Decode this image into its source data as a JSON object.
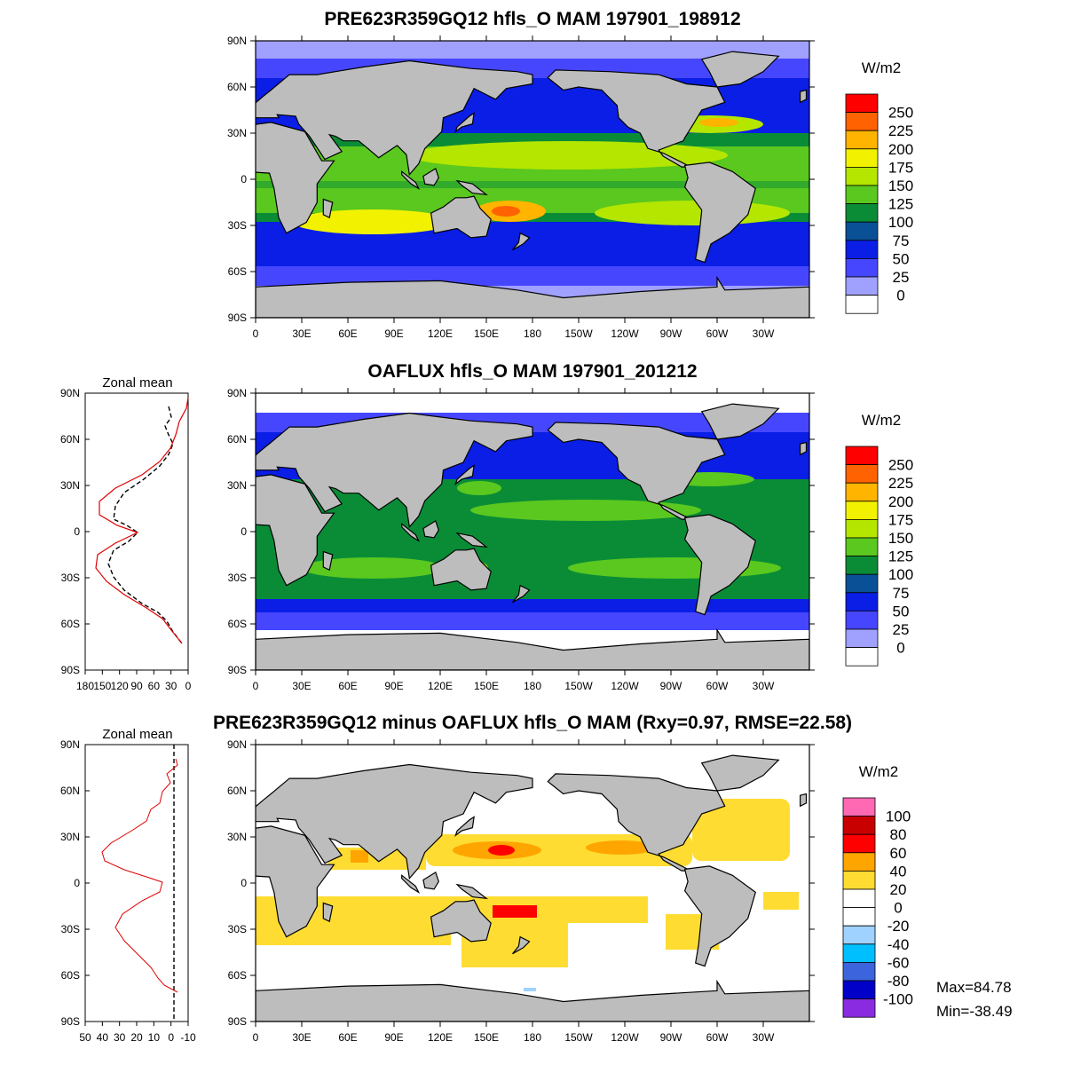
{
  "panels": [
    {
      "title": "PRE623R359GQ12 hfls_O MAM 197901_198912",
      "has_zonal": false,
      "colorbar": {
        "unit": "W/m2",
        "labels": [
          "250",
          "225",
          "200",
          "175",
          "150",
          "125",
          "100",
          "75",
          "50",
          "25",
          "0"
        ],
        "colors": [
          "#ff0000",
          "#ff6200",
          "#ffb400",
          "#f2f200",
          "#b4e600",
          "#5ac81e",
          "#0a8c37",
          "#0a5096",
          "#0a1ee6",
          "#4646ff",
          "#a0a0ff",
          "#ffffff"
        ]
      }
    },
    {
      "title": "OAFLUX hfls_O MAM 197901_201212",
      "has_zonal": true,
      "zonal": {
        "title": "Zonal mean",
        "xticks": [
          "180",
          "150",
          "120",
          "90",
          "60",
          "30",
          "0"
        ]
      },
      "colorbar": {
        "unit": "W/m2",
        "labels": [
          "250",
          "225",
          "200",
          "175",
          "150",
          "125",
          "100",
          "75",
          "50",
          "25",
          "0"
        ],
        "colors": [
          "#ff0000",
          "#ff6200",
          "#ffb400",
          "#f2f200",
          "#b4e600",
          "#5ac81e",
          "#0a8c37",
          "#0a5096",
          "#0a1ee6",
          "#4646ff",
          "#a0a0ff",
          "#ffffff"
        ]
      }
    },
    {
      "title": "PRE623R359GQ12 minus OAFLUX hfls_O MAM (Rxy=0.97, RMSE=22.58)",
      "has_zonal": true,
      "zonal": {
        "title": "Zonal mean",
        "xticks": [
          "50",
          "40",
          "30",
          "20",
          "10",
          "0",
          "-10"
        ]
      },
      "colorbar": {
        "unit": "W/m2",
        "labels": [
          "100",
          "80",
          "60",
          "40",
          "20",
          "0",
          "-20",
          "-40",
          "-60",
          "-80",
          "-100"
        ],
        "colors": [
          "#ff69b4",
          "#c80000",
          "#ff0000",
          "#ffa500",
          "#ffdc32",
          "#ffffff",
          "#ffffff",
          "#a0d2ff",
          "#00bfff",
          "#3c64dc",
          "#0000c8",
          "#8a2be2"
        ]
      },
      "stats": {
        "max": "Max=84.78",
        "min": "Min=-38.49"
      }
    }
  ],
  "axes": {
    "lat_labels": [
      "90N",
      "60N",
      "30N",
      "0",
      "30S",
      "60S",
      "90S"
    ],
    "lon_labels": [
      "0",
      "30E",
      "60E",
      "90E",
      "120E",
      "150E",
      "180",
      "150W",
      "120W",
      "90W",
      "60W",
      "30W"
    ]
  },
  "colors": {
    "land": "#bdbdbd"
  }
}
